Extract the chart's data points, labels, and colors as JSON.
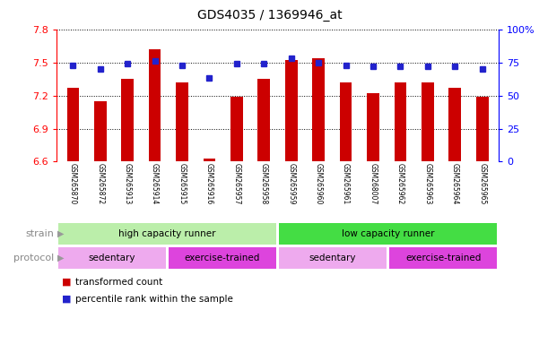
{
  "title": "GDS4035 / 1369946_at",
  "samples": [
    "GSM265870",
    "GSM265872",
    "GSM265913",
    "GSM265914",
    "GSM265915",
    "GSM265916",
    "GSM265957",
    "GSM265958",
    "GSM265959",
    "GSM265960",
    "GSM265961",
    "GSM268007",
    "GSM265962",
    "GSM265963",
    "GSM265964",
    "GSM265965"
  ],
  "bar_values": [
    7.27,
    7.15,
    7.35,
    7.62,
    7.32,
    6.63,
    7.19,
    7.35,
    7.52,
    7.54,
    7.32,
    7.22,
    7.32,
    7.32,
    7.27,
    7.19
  ],
  "dot_values": [
    73,
    70,
    74,
    76,
    73,
    63,
    74,
    74,
    78,
    75,
    73,
    72,
    72,
    72,
    72,
    70
  ],
  "ylim_left": [
    6.6,
    7.8
  ],
  "ylim_right": [
    0,
    100
  ],
  "yticks_left": [
    6.6,
    6.9,
    7.2,
    7.5,
    7.8
  ],
  "yticks_right": [
    0,
    25,
    50,
    75,
    100
  ],
  "bar_color": "#cc0000",
  "dot_color": "#2222cc",
  "strain_groups": [
    {
      "label": "high capacity runner",
      "start": 0,
      "end": 8,
      "color": "#bbeeaa"
    },
    {
      "label": "low capacity runner",
      "start": 8,
      "end": 16,
      "color": "#44dd44"
    }
  ],
  "protocol_groups": [
    {
      "label": "sedentary",
      "start": 0,
      "end": 4,
      "color": "#eeaaee"
    },
    {
      "label": "exercise-trained",
      "start": 4,
      "end": 8,
      "color": "#dd44dd"
    },
    {
      "label": "sedentary",
      "start": 8,
      "end": 12,
      "color": "#eeaaee"
    },
    {
      "label": "exercise-trained",
      "start": 12,
      "end": 16,
      "color": "#dd44dd"
    }
  ],
  "legend_bar_label": "transformed count",
  "legend_dot_label": "percentile rank within the sample",
  "strain_label": "strain",
  "protocol_label": "protocol",
  "tick_area_color": "#cccccc",
  "tick_divider_color": "#ffffff",
  "label_color": "#888888",
  "arrow_color": "#999999"
}
